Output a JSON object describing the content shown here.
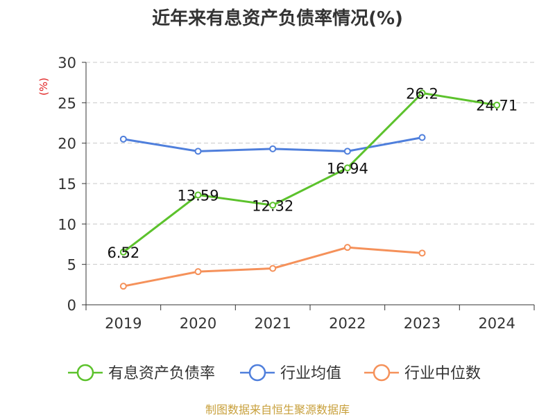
{
  "chart_data": {
    "type": "line",
    "title": "近年来有息资产负债率情况(%)",
    "ylabel": "(%)",
    "xlabel": "",
    "categories": [
      "2019",
      "2020",
      "2021",
      "2022",
      "2023",
      "2024"
    ],
    "ylim": [
      0,
      30
    ],
    "yticks": [
      0,
      5,
      10,
      15,
      20,
      25,
      30
    ],
    "grid": true,
    "legend_position": "bottom",
    "series": [
      {
        "name": "有息资产负债率",
        "color": "#5cc22c",
        "values": [
          6.52,
          13.59,
          12.32,
          16.94,
          26.2,
          24.71
        ],
        "labels": [
          "6.52",
          "13.59",
          "12.32",
          "16.94",
          "26.2",
          "24.71"
        ]
      },
      {
        "name": "行业均值",
        "color": "#4f7fdc",
        "values": [
          20.5,
          19.0,
          19.3,
          19.0,
          20.7,
          null
        ]
      },
      {
        "name": "行业中位数",
        "color": "#f5915a",
        "values": [
          2.3,
          4.1,
          4.5,
          7.1,
          6.4,
          null
        ]
      }
    ]
  },
  "footer": {
    "source": "制图数据来自恒生聚源数据库"
  }
}
